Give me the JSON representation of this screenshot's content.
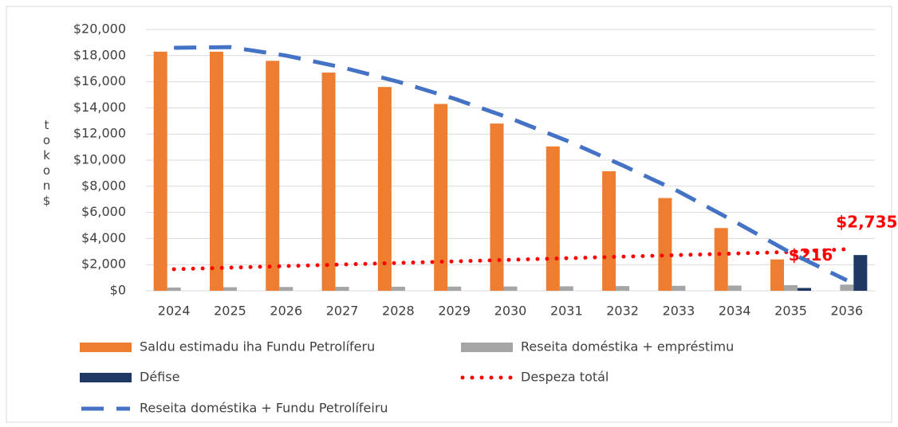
{
  "chart_data": {
    "type": "bar",
    "y_label": "tokon$",
    "categories": [
      "2024",
      "2025",
      "2026",
      "2027",
      "2028",
      "2029",
      "2030",
      "2031",
      "2032",
      "2033",
      "2034",
      "2035",
      "2036"
    ],
    "series": [
      {
        "name": "Saldu estimadu iha Fundu Petrolíferu",
        "type": "bar",
        "color": "#ed7d31",
        "values": [
          18300,
          18300,
          17600,
          16700,
          15600,
          14300,
          12800,
          11050,
          9150,
          7100,
          4800,
          2400,
          null
        ]
      },
      {
        "name": "Reseita doméstika + empréstimu",
        "type": "bar",
        "color": "#a5a5a5",
        "values": [
          250,
          270,
          290,
          300,
          310,
          320,
          330,
          340,
          360,
          380,
          400,
          430,
          470
        ]
      },
      {
        "name": "Défise",
        "type": "bar",
        "color": "#1f3864",
        "values": [
          null,
          null,
          null,
          null,
          null,
          null,
          null,
          null,
          null,
          null,
          null,
          216,
          2735
        ],
        "value_labels": [
          null,
          null,
          null,
          null,
          null,
          null,
          null,
          null,
          null,
          null,
          null,
          "$216",
          "$2,735"
        ]
      },
      {
        "name": "Despeza totál",
        "type": "dotted",
        "color": "#ff0000",
        "values": [
          1650,
          1770,
          1890,
          2010,
          2130,
          2250,
          2370,
          2490,
          2610,
          2730,
          2850,
          2970,
          3185
        ]
      },
      {
        "name": "Reseita doméstika + Fundu Petrolífeiru",
        "type": "dashed",
        "color": "#4472c4",
        "values": [
          18600,
          18650,
          18000,
          17100,
          16000,
          14700,
          13200,
          11500,
          9600,
          7600,
          5300,
          2900,
          800
        ]
      }
    ],
    "ylim": [
      0,
      20000
    ],
    "yticks": [
      {
        "value": 0,
        "label": "$0"
      },
      {
        "value": 2000,
        "label": "$2,000"
      },
      {
        "value": 4000,
        "label": "$4,000"
      },
      {
        "value": 6000,
        "label": "$6,000"
      },
      {
        "value": 8000,
        "label": "$8,000"
      },
      {
        "value": 10000,
        "label": "$10,000"
      },
      {
        "value": 12000,
        "label": "$12,000"
      },
      {
        "value": 14000,
        "label": "$14,000"
      },
      {
        "value": 16000,
        "label": "$16,000"
      },
      {
        "value": 18000,
        "label": "$18,000"
      },
      {
        "value": 20000,
        "label": "$20,000"
      }
    ],
    "grid": true,
    "legend": "bottom"
  }
}
